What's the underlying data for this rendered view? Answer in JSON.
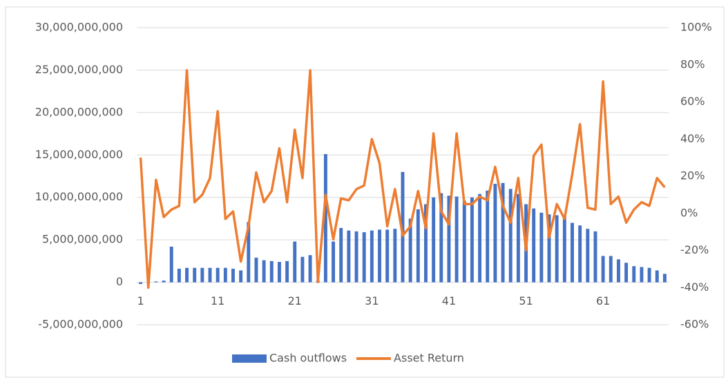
{
  "chart_data": {
    "type": "combo",
    "categories": [
      1,
      null,
      null,
      null,
      null,
      null,
      null,
      null,
      null,
      null,
      11,
      null,
      null,
      null,
      null,
      null,
      null,
      null,
      null,
      null,
      21,
      null,
      null,
      null,
      null,
      null,
      null,
      null,
      null,
      null,
      31,
      null,
      null,
      null,
      null,
      null,
      null,
      null,
      null,
      null,
      41,
      null,
      null,
      null,
      null,
      null,
      null,
      null,
      null,
      null,
      51,
      null,
      null,
      null,
      null,
      null,
      null,
      null,
      null,
      null,
      61,
      null,
      null,
      null,
      null,
      null,
      null,
      null,
      null
    ],
    "series": [
      {
        "name": "Cash outflows",
        "type": "bar",
        "color": "#4472c4",
        "axis": "y",
        "values": [
          -200000000,
          50000000,
          100000000,
          200000000,
          4200000000,
          1600000000,
          1700000000,
          1700000000,
          1700000000,
          1700000000,
          1700000000,
          1700000000,
          1600000000,
          1400000000,
          7100000000,
          2900000000,
          2600000000,
          2500000000,
          2400000000,
          2500000000,
          4800000000,
          3000000000,
          3200000000,
          200000000,
          15100000000,
          4800000000,
          6400000000,
          6100000000,
          6000000000,
          5900000000,
          6100000000,
          6200000000,
          6200000000,
          6300000000,
          13000000000,
          7500000000,
          8600000000,
          9200000000,
          10000000000,
          10500000000,
          10200000000,
          10100000000,
          9600000000,
          10000000000,
          10400000000,
          10800000000,
          11600000000,
          11700000000,
          11000000000,
          10400000000,
          9200000000,
          8700000000,
          8200000000,
          8000000000,
          7900000000,
          7900000000,
          7000000000,
          6700000000,
          6300000000,
          6000000000,
          3100000000,
          3100000000,
          2700000000,
          2300000000,
          1900000000,
          1800000000,
          1700000000,
          1400000000,
          1000000000
        ]
      },
      {
        "name": "Asset Return",
        "type": "line",
        "color": "#ed7d31",
        "axis": "y2",
        "values": [
          30,
          -40,
          18,
          -2,
          2,
          4,
          77,
          6,
          10,
          19,
          55,
          -3,
          1,
          -26,
          -7,
          22,
          6,
          12,
          35,
          6,
          45,
          19,
          77,
          -37,
          10,
          -14,
          8,
          7,
          13,
          15,
          40,
          27,
          -7,
          13,
          -12,
          -7,
          12,
          -8,
          43,
          1,
          -6,
          43,
          5,
          5,
          9,
          7,
          25,
          4,
          -5,
          19,
          -20,
          31,
          37,
          -13,
          5,
          -3,
          21,
          48,
          3,
          2,
          71,
          5,
          9,
          -5,
          2,
          6,
          4,
          19,
          14
        ]
      }
    ],
    "ylim": [
      -5000000000,
      30000000000
    ],
    "yticks": [
      {
        "value": -5000000000,
        "label": "-5,000,000,000"
      },
      0,
      {
        "value": 5000000000,
        "label": "5,000,000,000"
      },
      {
        "value": 10000000000,
        "label": "10,000,000,000"
      },
      {
        "value": 15000000000,
        "label": "15,000,000,000"
      },
      {
        "value": 20000000000,
        "label": "20,000,000,000"
      },
      {
        "value": 25000000000,
        "label": "25,000,000,000"
      },
      {
        "value": 30000000000,
        "label": "30,000,000,000"
      }
    ],
    "y2lim": [
      -60,
      100
    ],
    "y2ticks": [
      {
        "value": -60,
        "label": "-60%"
      },
      {
        "value": -40,
        "label": "-40%"
      },
      {
        "value": -20,
        "label": "-20%"
      },
      {
        "value": 0,
        "label": "0%"
      },
      {
        "value": 20,
        "label": "20%"
      },
      {
        "value": 40,
        "label": "40%"
      },
      {
        "value": 60,
        "label": "60%"
      },
      {
        "value": 80,
        "label": "80%"
      },
      {
        "value": 100,
        "label": "100%"
      }
    ],
    "grid": true,
    "legend": "bottom"
  }
}
